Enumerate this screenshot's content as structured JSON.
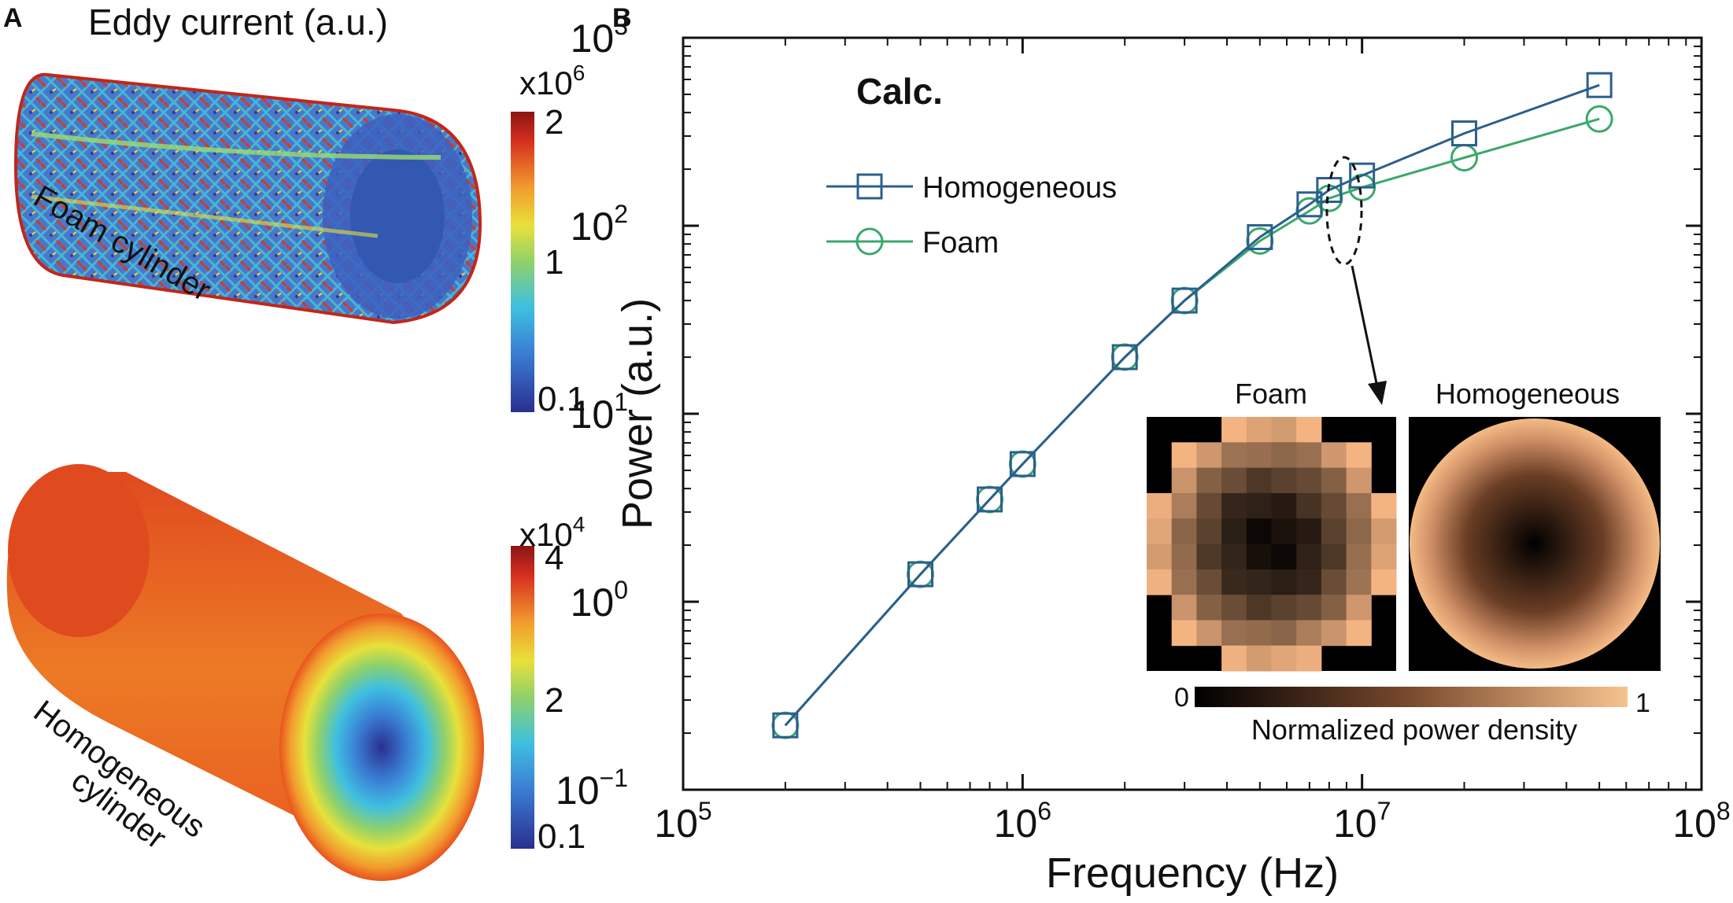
{
  "panel_a": {
    "label": "A",
    "title": "Eddy current (a.u.)",
    "foam": {
      "label": "Foam cylinder",
      "colorbar": {
        "multiplier": "x10",
        "exponent": "6",
        "ticks": [
          "2",
          "1",
          "0.1"
        ]
      }
    },
    "homogeneous": {
      "label_line1": "Homogeneous",
      "label_line2": "cylinder",
      "colorbar": {
        "multiplier": "x10",
        "exponent": "4",
        "ticks": [
          "4",
          "2",
          "0.1"
        ]
      }
    },
    "colors": [
      "#2a2f8f",
      "#3a7fd5",
      "#3fc0e0",
      "#8fd16a",
      "#e8e13a",
      "#f29a2e",
      "#d6301f",
      "#8b1414"
    ]
  },
  "panel_b": {
    "label": "B",
    "annotation": "Calc.",
    "inset": {
      "foam_title": "Foam",
      "homogeneous_title": "Homogeneous",
      "colorbar_min": "0",
      "colorbar_max": "1",
      "colorbar_label": "Normalized power density"
    }
  },
  "chart_data": {
    "type": "line",
    "xscale": "log",
    "yscale": "log",
    "xlabel": "Frequency (Hz)",
    "ylabel": "Power (a.u.)",
    "xlim": [
      100000,
      100000000
    ],
    "ylim": [
      0.1,
      1000
    ],
    "x_ticks": [
      {
        "base": "10",
        "exp": "5"
      },
      {
        "base": "10",
        "exp": "6"
      },
      {
        "base": "10",
        "exp": "7"
      },
      {
        "base": "10",
        "exp": "8"
      }
    ],
    "y_ticks": [
      {
        "base": "10",
        "exp": "−1"
      },
      {
        "base": "10",
        "exp": "0"
      },
      {
        "base": "10",
        "exp": "1"
      },
      {
        "base": "10",
        "exp": "2"
      },
      {
        "base": "10",
        "exp": "3"
      }
    ],
    "legend_position": "upper-left",
    "series": [
      {
        "name": "Homogeneous",
        "marker": "square",
        "color": "#2b5f8e",
        "x": [
          200000,
          500000,
          800000,
          1000000,
          2000000,
          3000000,
          5000000,
          7000000,
          8000000,
          10000000,
          20000000,
          50000000
        ],
        "y": [
          0.22,
          1.4,
          3.5,
          5.4,
          20,
          40,
          87,
          130,
          155,
          185,
          310,
          560
        ]
      },
      {
        "name": "Foam",
        "marker": "circle",
        "color": "#3aa86b",
        "x": [
          200000,
          500000,
          800000,
          1000000,
          2000000,
          3000000,
          5000000,
          7000000,
          8000000,
          10000000,
          20000000,
          50000000
        ],
        "y": [
          0.22,
          1.4,
          3.5,
          5.4,
          20,
          40,
          83,
          120,
          140,
          160,
          230,
          370
        ]
      }
    ]
  }
}
